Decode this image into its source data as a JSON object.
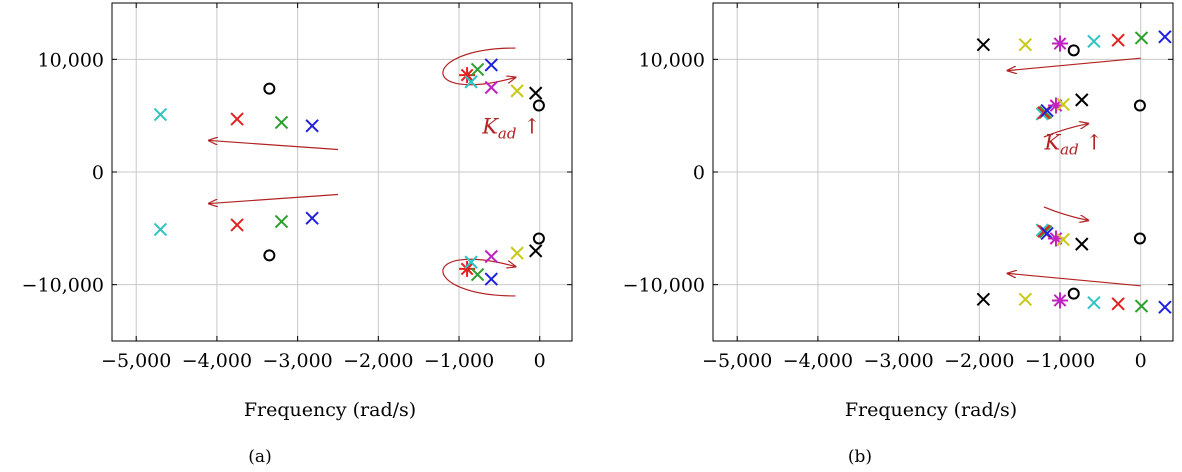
{
  "chart_data": [
    {
      "type": "scatter",
      "caption": "(a)",
      "xlabel": "Frequency (rad/s)",
      "ylabel": "",
      "xlim": [
        -5300,
        400
      ],
      "ylim": [
        -15000,
        15000
      ],
      "xticks": [
        -5000,
        -4000,
        -3000,
        -2000,
        -1000,
        0
      ],
      "xtick_labels": [
        "−5,000",
        "−4,000",
        "−3,000",
        "−2,000",
        "−1,000",
        "0"
      ],
      "yticks": [
        -10000,
        0,
        10000
      ],
      "ytick_labels": [
        "−10,000",
        "0",
        "10,000"
      ],
      "grid": true,
      "annotation": {
        "text_main": "K",
        "text_sub": "ad",
        "text_arrow": " ↑",
        "x": -350,
        "y": 3400
      },
      "points": [
        {
          "kind": "cross",
          "color": "#2ec4c4",
          "x": -4700,
          "y": 5100
        },
        {
          "kind": "cross",
          "color": "#2ec4c4",
          "x": -4700,
          "y": -5100
        },
        {
          "kind": "cross",
          "color": "#e32020",
          "x": -3750,
          "y": 4700
        },
        {
          "kind": "cross",
          "color": "#e32020",
          "x": -3750,
          "y": -4700
        },
        {
          "kind": "circle",
          "color": "#000000",
          "x": -3350,
          "y": 7400
        },
        {
          "kind": "circle",
          "color": "#000000",
          "x": -3350,
          "y": -7400
        },
        {
          "kind": "cross",
          "color": "#2ca02c",
          "x": -3200,
          "y": 4400
        },
        {
          "kind": "cross",
          "color": "#2ca02c",
          "x": -3200,
          "y": -4400
        },
        {
          "kind": "cross",
          "color": "#1f1fe0",
          "x": -2820,
          "y": 4100
        },
        {
          "kind": "cross",
          "color": "#1f1fe0",
          "x": -2820,
          "y": -4100
        },
        {
          "kind": "star",
          "color": "#e32020",
          "x": -900,
          "y": 8600
        },
        {
          "kind": "star",
          "color": "#e32020",
          "x": -900,
          "y": -8600
        },
        {
          "kind": "cross",
          "color": "#2ec4c4",
          "x": -850,
          "y": 8000
        },
        {
          "kind": "cross",
          "color": "#2ec4c4",
          "x": -850,
          "y": -8000
        },
        {
          "kind": "cross",
          "color": "#2ca02c",
          "x": -770,
          "y": 9100
        },
        {
          "kind": "cross",
          "color": "#2ca02c",
          "x": -770,
          "y": -9100
        },
        {
          "kind": "cross",
          "color": "#1f1fe0",
          "x": -600,
          "y": 9500
        },
        {
          "kind": "cross",
          "color": "#1f1fe0",
          "x": -600,
          "y": -9500
        },
        {
          "kind": "cross",
          "color": "#c023c0",
          "x": -600,
          "y": 7500
        },
        {
          "kind": "cross",
          "color": "#c023c0",
          "x": -600,
          "y": -7500
        },
        {
          "kind": "cross",
          "color": "#c9c91a",
          "x": -280,
          "y": 7200
        },
        {
          "kind": "cross",
          "color": "#c9c91a",
          "x": -280,
          "y": -7200
        },
        {
          "kind": "cross",
          "color": "#000000",
          "x": -50,
          "y": 7000
        },
        {
          "kind": "cross",
          "color": "#000000",
          "x": -50,
          "y": -7000
        },
        {
          "kind": "circle",
          "color": "#000000",
          "x": -10,
          "y": 5900
        },
        {
          "kind": "circle",
          "color": "#000000",
          "x": -10,
          "y": -5900
        }
      ]
    },
    {
      "type": "scatter",
      "caption": "(b)",
      "xlabel": "Frequency (rad/s)",
      "ylabel": "",
      "xlim": [
        -5300,
        400
      ],
      "ylim": [
        -15000,
        15000
      ],
      "xticks": [
        -5000,
        -4000,
        -3000,
        -2000,
        -1000,
        0
      ],
      "xtick_labels": [
        "−5,000",
        "−4,000",
        "−3,000",
        "−2,000",
        "−1,000",
        "0"
      ],
      "yticks": [
        -10000,
        0,
        10000
      ],
      "ytick_labels": [
        "−10,000",
        "0",
        "10,000"
      ],
      "grid": true,
      "annotation": {
        "text_main": "K",
        "text_sub": "ad",
        "text_arrow": " ↑",
        "x": -830,
        "y": 2000
      },
      "points": [
        {
          "kind": "cross",
          "color": "#000000",
          "x": -1950,
          "y": 11300
        },
        {
          "kind": "cross",
          "color": "#000000",
          "x": -1950,
          "y": -11300
        },
        {
          "kind": "cross",
          "color": "#c9c91a",
          "x": -1430,
          "y": 11300
        },
        {
          "kind": "cross",
          "color": "#c9c91a",
          "x": -1430,
          "y": -11300
        },
        {
          "kind": "star",
          "color": "#c023c0",
          "x": -1000,
          "y": 11400
        },
        {
          "kind": "star",
          "color": "#c023c0",
          "x": -1000,
          "y": -11400
        },
        {
          "kind": "circle",
          "color": "#000000",
          "x": -830,
          "y": 10800
        },
        {
          "kind": "circle",
          "color": "#000000",
          "x": -830,
          "y": -10800
        },
        {
          "kind": "cross",
          "color": "#2ec4c4",
          "x": -580,
          "y": 11600
        },
        {
          "kind": "cross",
          "color": "#2ec4c4",
          "x": -580,
          "y": -11600
        },
        {
          "kind": "cross",
          "color": "#e32020",
          "x": -280,
          "y": 11700
        },
        {
          "kind": "cross",
          "color": "#e32020",
          "x": -280,
          "y": -11700
        },
        {
          "kind": "cross",
          "color": "#2ca02c",
          "x": 10,
          "y": 11900
        },
        {
          "kind": "cross",
          "color": "#2ca02c",
          "x": 10,
          "y": -11900
        },
        {
          "kind": "cross",
          "color": "#1f1fe0",
          "x": 300,
          "y": 12000
        },
        {
          "kind": "cross",
          "color": "#1f1fe0",
          "x": 300,
          "y": -12000
        },
        {
          "kind": "cross",
          "color": "#2ec4c4",
          "x": -1220,
          "y": 5150
        },
        {
          "kind": "cross",
          "color": "#2ec4c4",
          "x": -1220,
          "y": -5150
        },
        {
          "kind": "cross",
          "color": "#2ca02c",
          "x": -1180,
          "y": 5300
        },
        {
          "kind": "cross",
          "color": "#2ca02c",
          "x": -1180,
          "y": -5300
        },
        {
          "kind": "cross",
          "color": "#e32020",
          "x": -1200,
          "y": 5250
        },
        {
          "kind": "cross",
          "color": "#e32020",
          "x": -1200,
          "y": -5250
        },
        {
          "kind": "cross",
          "color": "#1f1fe0",
          "x": -1160,
          "y": 5450
        },
        {
          "kind": "cross",
          "color": "#1f1fe0",
          "x": -1160,
          "y": -5450
        },
        {
          "kind": "star",
          "color": "#c023c0",
          "x": -1050,
          "y": 5900
        },
        {
          "kind": "star",
          "color": "#c023c0",
          "x": -1050,
          "y": -5900
        },
        {
          "kind": "cross",
          "color": "#c9c91a",
          "x": -960,
          "y": 6000
        },
        {
          "kind": "cross",
          "color": "#c9c91a",
          "x": -960,
          "y": -6000
        },
        {
          "kind": "cross",
          "color": "#000000",
          "x": -730,
          "y": 6400
        },
        {
          "kind": "cross",
          "color": "#000000",
          "x": -730,
          "y": -6400
        },
        {
          "kind": "circle",
          "color": "#000000",
          "x": -10,
          "y": 5900
        },
        {
          "kind": "circle",
          "color": "#000000",
          "x": -10,
          "y": -5900
        }
      ]
    }
  ]
}
